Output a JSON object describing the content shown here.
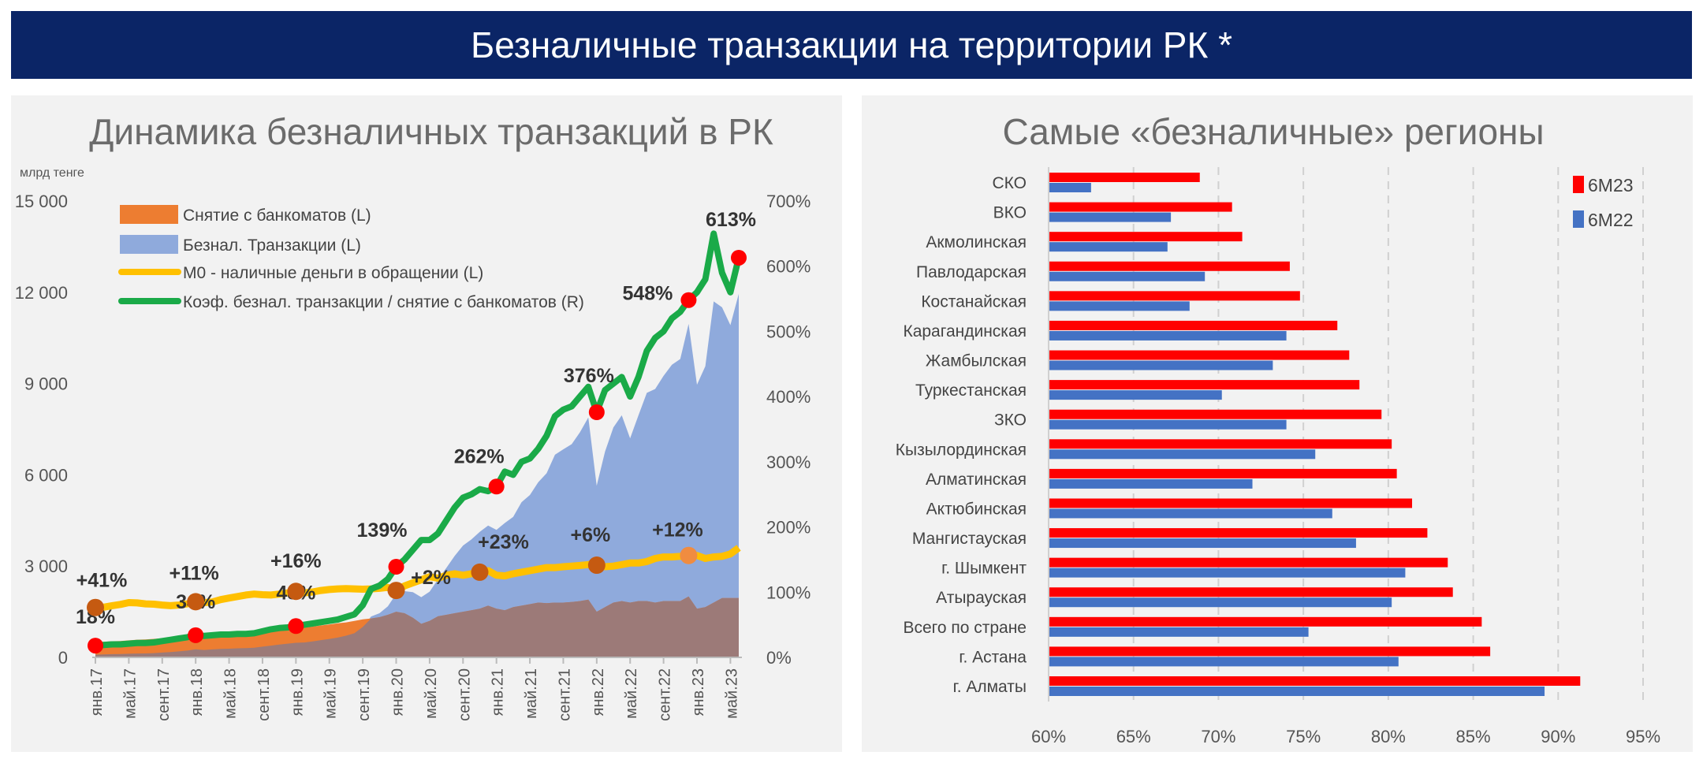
{
  "header": {
    "title": "Безналичные транзакции на территории РК *"
  },
  "colors": {
    "header_bg": "#0b2566",
    "panel_bg": "#f2f2f2",
    "atm": "#ED7D31",
    "noncash": "#8FAADC",
    "overlap": "#9C7A78",
    "m0": "#FFC000",
    "ratio": "#1AAA48",
    "red_dot": "#FF0000",
    "m0_dot": "#C55A11",
    "bar_6m23": "#FF0000",
    "bar_6m22": "#4472C4"
  },
  "chart_data": [
    {
      "type": "area",
      "title": "Динамика безналичных транзакций в РК",
      "ylabel": "млрд тенге",
      "ylim": [
        0,
        15000
      ],
      "y_ticks": [
        "15 000",
        "12 000",
        "9 000",
        "6 000",
        "3 000",
        "0"
      ],
      "y_tick_values": [
        15000,
        12000,
        9000,
        6000,
        3000,
        0
      ],
      "y2lim": [
        0,
        700
      ],
      "y2_ticks": [
        "700%",
        "600%",
        "500%",
        "400%",
        "300%",
        "200%",
        "100%",
        "0%"
      ],
      "y2_tick_values": [
        700,
        600,
        500,
        400,
        300,
        200,
        100,
        0
      ],
      "x_start": "янв.17",
      "x_end": "июн.23",
      "x_ticks": [
        "янв.17",
        "май.17",
        "сент.17",
        "янв.18",
        "май.18",
        "сент.18",
        "янв.19",
        "май.19",
        "сент.19",
        "янв.20",
        "май.20",
        "сент.20",
        "янв.21",
        "май.21",
        "сент.21",
        "янв.22",
        "май.22",
        "сент.22",
        "янв.23",
        "май.23"
      ],
      "grid": false,
      "legend_position": "top-left",
      "series": [
        {
          "name": "Снятие с банкоматов (L)",
          "type": "area",
          "axis": "left",
          "values": [
            500,
            510,
            530,
            540,
            560,
            580,
            590,
            610,
            630,
            650,
            680,
            720,
            780,
            740,
            770,
            800,
            810,
            830,
            840,
            860,
            880,
            900,
            930,
            980,
            1000,
            980,
            1010,
            1050,
            1080,
            1120,
            1150,
            1200,
            1250,
            1280,
            1320,
            1400,
            1500,
            1450,
            1300,
            1100,
            1200,
            1350,
            1400,
            1450,
            1500,
            1550,
            1600,
            1700,
            1600,
            1550,
            1650,
            1700,
            1750,
            1800,
            1780,
            1800,
            1800,
            1820,
            1850,
            1900,
            1500,
            1650,
            1800,
            1850,
            1800,
            1850,
            1850,
            1800,
            1850,
            1850,
            1850,
            2000,
            1600,
            1650,
            1800,
            1950,
            1950,
            1950
          ]
        },
        {
          "name": "Безнал. Транзакции (L)",
          "type": "area",
          "axis": "left",
          "values": [
            90,
            97,
            106,
            108,
            118,
            128,
            130,
            140,
            158,
            176,
            197,
            223,
            265,
            244,
            262,
            280,
            284,
            299,
            302,
            318,
            352,
            387,
            419,
            451,
            480,
            490,
            525,
            567,
            605,
            650,
            713,
            792,
            1000,
            1344,
            1452,
            1680,
            2085,
            2175,
            2145,
            1980,
            2160,
            2565,
            2940,
            3335,
            3675,
            3875,
            4128,
            4335,
            4192,
            4418,
            4620,
            5100,
            5338,
            5760,
            6052,
            6660,
            6840,
            7007,
            7400,
            7885,
            5640,
            6765,
            7560,
            7955,
            7200,
            7955,
            8695,
            8820,
            9250,
            9620,
            9805,
            10960,
            8960,
            9570,
            11700,
            11505,
            10920,
            11950
          ]
        },
        {
          "name": "М0 - наличные деньги в обращении (L)",
          "type": "line",
          "axis": "left",
          "values": [
            1640,
            1650,
            1700,
            1740,
            1800,
            1790,
            1760,
            1750,
            1720,
            1700,
            1720,
            1760,
            1830,
            1800,
            1820,
            1900,
            1950,
            2000,
            2050,
            2080,
            2060,
            2050,
            2080,
            2120,
            2170,
            2120,
            2150,
            2200,
            2230,
            2250,
            2260,
            2250,
            2240,
            2250,
            2270,
            2300,
            2200,
            2350,
            2450,
            2550,
            2650,
            2600,
            2700,
            2750,
            2700,
            2750,
            2800,
            2850,
            2700,
            2680,
            2750,
            2800,
            2850,
            2900,
            2950,
            2950,
            2980,
            3000,
            3020,
            3050,
            3030,
            2980,
            3000,
            3050,
            3100,
            3100,
            3150,
            3250,
            3300,
            3300,
            3320,
            3350,
            3350,
            3250,
            3300,
            3320,
            3400,
            3600
          ]
        },
        {
          "name": "Коэф. безнал. транзакции / снятие с банкоматов (R)",
          "type": "line",
          "axis": "right",
          "values": [
            18,
            19,
            20,
            20,
            21,
            22,
            22,
            23,
            25,
            27,
            29,
            31,
            34,
            33,
            34,
            35,
            35,
            36,
            36,
            37,
            40,
            43,
            45,
            46,
            48,
            50,
            52,
            54,
            56,
            58,
            62,
            66,
            80,
            105,
            110,
            120,
            139,
            150,
            165,
            180,
            180,
            190,
            210,
            230,
            245,
            250,
            258,
            255,
            262,
            285,
            280,
            300,
            305,
            320,
            340,
            370,
            380,
            385,
            400,
            415,
            376,
            410,
            420,
            430,
            400,
            430,
            470,
            490,
            500,
            520,
            530,
            548,
            560,
            580,
            650,
            590,
            560,
            613
          ]
        }
      ],
      "ratio_annotations": [
        {
          "month": "янв.17",
          "label": "18%"
        },
        {
          "month": "янв.18",
          "label": "34%"
        },
        {
          "month": "янв.19",
          "label": "48%"
        },
        {
          "month": "янв.20",
          "label": "139%"
        },
        {
          "month": "янв.21",
          "label": "262%"
        },
        {
          "month": "янв.22",
          "label": "376%"
        },
        {
          "month": "дек.22",
          "label": "548%"
        },
        {
          "month": "июн.23",
          "label": "613%"
        }
      ],
      "m0_annotations": [
        {
          "month": "янв.17",
          "label": "+41%"
        },
        {
          "month": "янв.18",
          "label": "+11%"
        },
        {
          "month": "янв.19",
          "label": "+16%"
        },
        {
          "month": "янв.20",
          "label": "+2%"
        },
        {
          "month": "ноя.20",
          "label": "+23%"
        },
        {
          "month": "янв.22",
          "label": "+6%"
        },
        {
          "month": "дек.22",
          "label": "+12%"
        }
      ]
    },
    {
      "type": "bar",
      "orientation": "horizontal",
      "title": "Самые «безналичные» регионы",
      "xlim": [
        60,
        95
      ],
      "x_ticks": [
        "60%",
        "65%",
        "70%",
        "75%",
        "80%",
        "85%",
        "90%",
        "95%"
      ],
      "grid": true,
      "legend_position": "top-right",
      "categories": [
        "СКО",
        "ВКО",
        "Акмолинская",
        "Павлодарская",
        "Костанайская",
        "Карагандинская",
        "Жамбылская",
        "Туркестанская",
        "ЗКО",
        "Кызылординская",
        "Алматинская",
        "Актюбинская",
        "Мангистауская",
        "г. Шымкент",
        "Атырауская",
        "Всего по стране",
        "г. Астана",
        "г. Алматы"
      ],
      "series": [
        {
          "name": "6М23",
          "values": [
            68.9,
            70.8,
            71.4,
            74.2,
            74.8,
            77.0,
            77.7,
            78.3,
            79.6,
            80.2,
            80.5,
            81.4,
            82.3,
            83.5,
            83.8,
            85.5,
            86.0,
            91.3
          ]
        },
        {
          "name": "6М22",
          "values": [
            62.5,
            67.2,
            67.0,
            69.2,
            68.3,
            74.0,
            73.2,
            70.2,
            74.0,
            75.7,
            72.0,
            76.7,
            78.1,
            81.0,
            80.2,
            75.3,
            80.6,
            89.2
          ]
        }
      ]
    }
  ]
}
